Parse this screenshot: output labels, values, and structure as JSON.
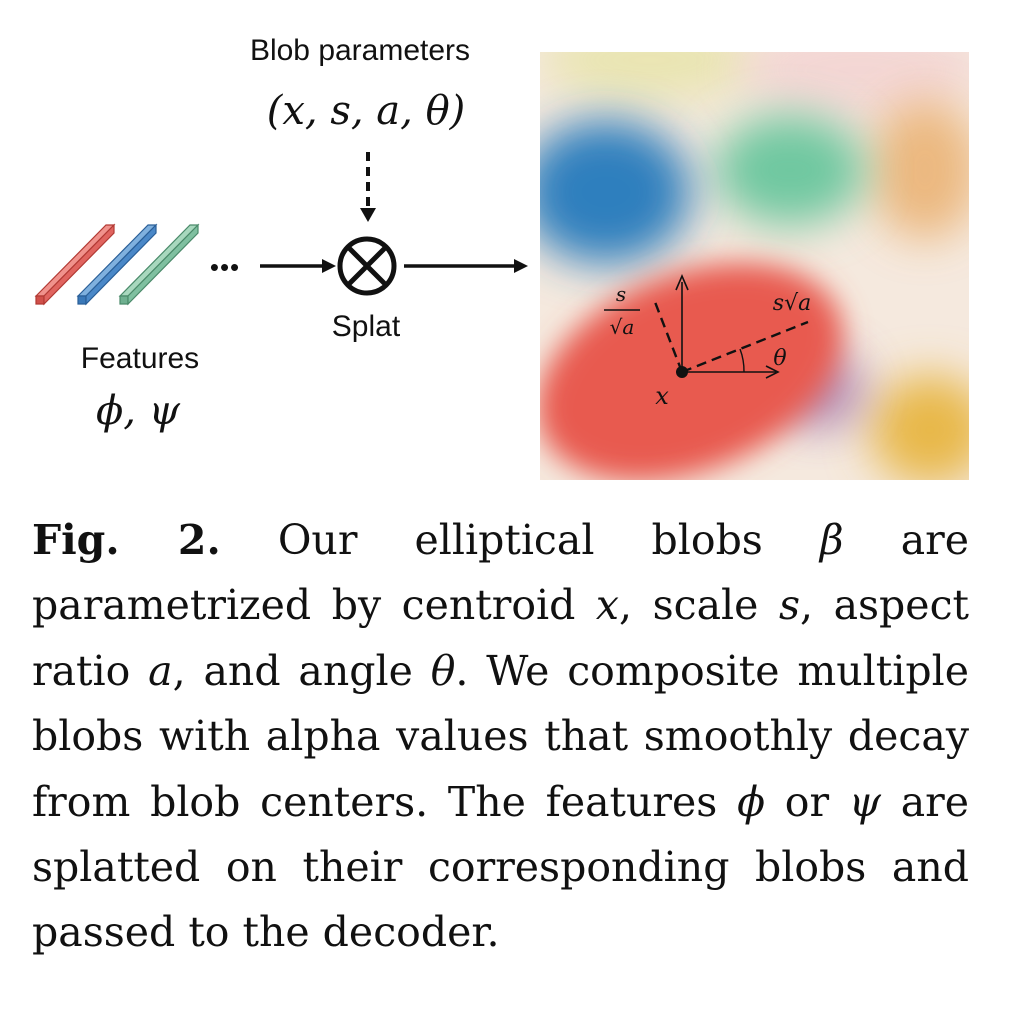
{
  "figure": {
    "blob_parameters_label": "Blob parameters",
    "blob_parameters_math": "(x, s, a, θ)",
    "features_label": "Features",
    "features_math": "ϕ, ψ",
    "ellipsis": "•••",
    "splat_label": "Splat",
    "splat_symbol": "⊗",
    "annot_s": "s",
    "annot_sqrt_a": "√a",
    "annot_s_sqrt_a": "s√a",
    "annot_theta": "θ",
    "annot_x": "x",
    "colors": {
      "red_feature": "#e0645f",
      "blue_feature": "#4a88c8",
      "green_feature": "#7fc0a0",
      "blob_red": "#e85a4f",
      "blob_blue": "#2f7fbe",
      "blob_green": "#70c8a0",
      "blob_orange": "#eab070",
      "blob_yellow": "#e8b84a",
      "blob_purple": "#9a6aa8"
    }
  },
  "caption": {
    "label": "Fig. 2.",
    "t1": " Our elliptical blobs ",
    "beta": "β",
    "t2": " are parametrized by centroid ",
    "x": "x",
    "t3": ", scale ",
    "s": "s",
    "t4": ", aspect ratio ",
    "a": "a",
    "t5": ", and angle ",
    "theta": "θ",
    "t6": ". We composite multiple blobs with alpha values that smoothly decay from blob centers. The features ",
    "phi": "ϕ",
    "t7": " or ",
    "psi": "ψ",
    "t8": " are splatted on their corresponding blobs and passed to the decoder."
  }
}
